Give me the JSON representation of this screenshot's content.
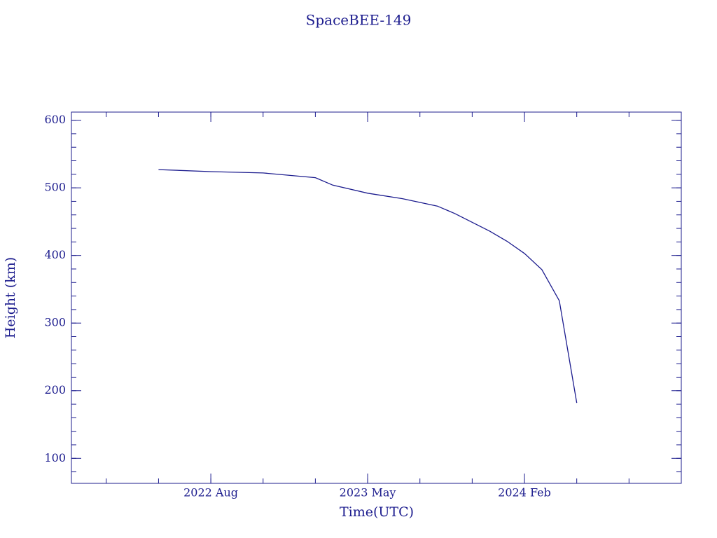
{
  "chart_data": {
    "type": "line",
    "title": "SpaceBEE-149",
    "x_label": "Time(UTC)",
    "y_label": "Height (km)",
    "color": "#1c1c8e",
    "x": [
      "2022-05",
      "2022-08",
      "2022-11",
      "2023-02",
      "2023-03",
      "2023-05",
      "2023-07",
      "2023-09",
      "2023-10",
      "2023-12",
      "2024-01",
      "2024-02",
      "2024-03",
      "2024-04",
      "2024-05"
    ],
    "values": [
      527,
      524,
      522,
      515,
      504,
      492,
      484,
      473,
      462,
      436,
      421,
      403,
      379,
      333,
      182
    ],
    "xlim": [
      "2021-12",
      "2024-11"
    ],
    "xticks": [
      {
        "value": "2022-08",
        "label": "2022 Aug"
      },
      {
        "value": "2023-05",
        "label": "2023 May"
      },
      {
        "value": "2024-02",
        "label": "2024 Feb"
      }
    ],
    "ylim": [
      63,
      612
    ],
    "yticks": [
      100,
      200,
      300,
      400,
      500,
      600
    ]
  }
}
